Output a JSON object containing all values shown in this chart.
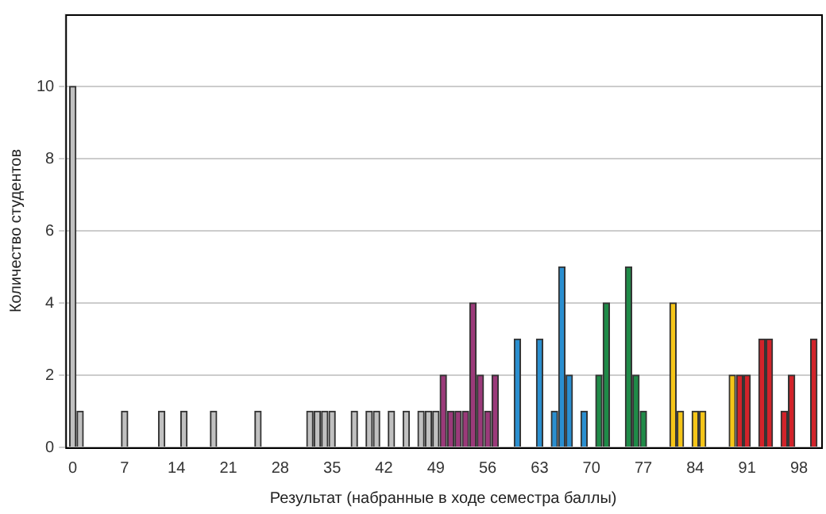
{
  "chart_data": {
    "type": "bar",
    "xlabel": "Результат (набранные в ходе семестра баллы)",
    "ylabel": "Количество студентов",
    "xlim": [
      -1,
      101
    ],
    "xticks": [
      0,
      7,
      14,
      21,
      28,
      35,
      42,
      49,
      56,
      63,
      70,
      77,
      84,
      91,
      98
    ],
    "ylim": [
      0,
      12
    ],
    "yticks": [
      0,
      2,
      4,
      6,
      8,
      10
    ],
    "grid": "y",
    "legend": false,
    "series": [
      {
        "color": "#c0c0c0",
        "x": [
          0,
          1,
          7,
          12,
          15,
          19,
          25,
          32,
          33,
          34,
          35,
          38,
          40,
          41,
          43,
          45,
          47,
          48,
          49
        ],
        "values": [
          10,
          1,
          1,
          1,
          1,
          1,
          1,
          1,
          1,
          1,
          1,
          1,
          1,
          1,
          1,
          1,
          1,
          1,
          1
        ]
      },
      {
        "color": "#9b3a7a",
        "x": [
          50,
          51,
          52,
          53,
          54,
          55,
          56,
          57
        ],
        "values": [
          2,
          1,
          1,
          1,
          4,
          2,
          1,
          2
        ]
      },
      {
        "color": "#2a8fd0",
        "x": [
          60,
          63,
          65,
          66,
          67,
          69
        ],
        "values": [
          3,
          3,
          1,
          5,
          2,
          1
        ]
      },
      {
        "color": "#1f8b48",
        "x": [
          71,
          72,
          75,
          76,
          77
        ],
        "values": [
          2,
          4,
          5,
          2,
          1
        ]
      },
      {
        "color": "#f5c518",
        "x": [
          81,
          82,
          84,
          85,
          89
        ],
        "values": [
          4,
          1,
          1,
          1,
          2
        ]
      },
      {
        "color": "#d2232a",
        "x": [
          90,
          91,
          93,
          94,
          96,
          97,
          100
        ],
        "values": [
          2,
          2,
          3,
          3,
          1,
          2,
          3
        ]
      }
    ]
  }
}
